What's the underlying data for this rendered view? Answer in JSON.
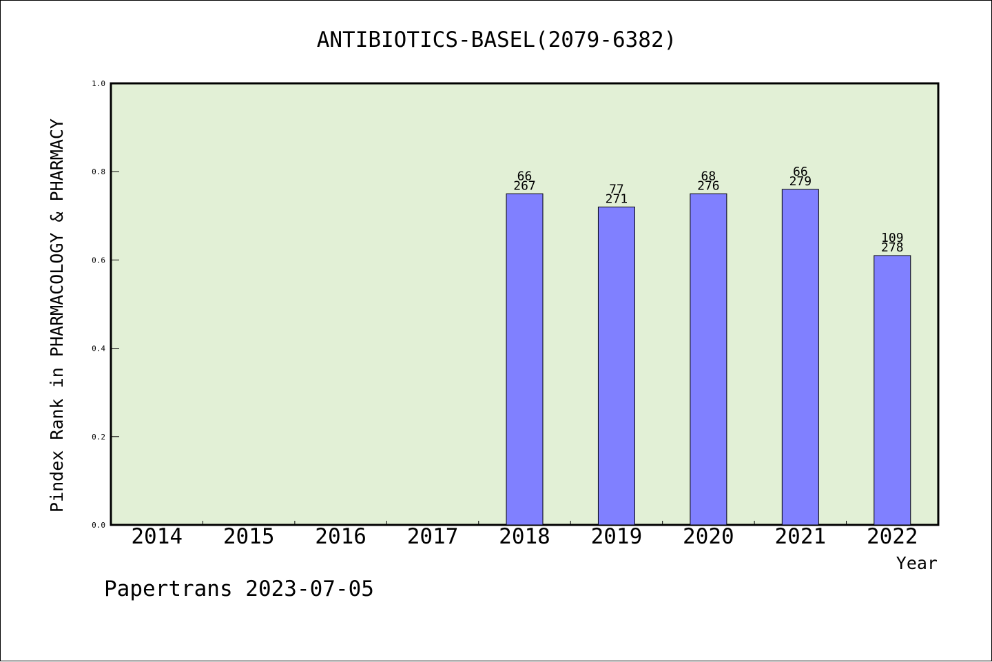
{
  "footer_text": "Papertrans 2023-07-05",
  "colors": {
    "plot_background": "#e2f0d6",
    "bar_fill": "#8080ff",
    "bar_stroke": "#000000",
    "axis": "#000000"
  },
  "chart_data": {
    "type": "bar",
    "title": "ANTIBIOTICS-BASEL(2079-6382)",
    "xlabel": "Year",
    "ylabel": "Pindex Rank in PHARMACOLOGY & PHARMACY",
    "ylim": [
      0,
      1.0
    ],
    "yticks": [
      "0.0",
      "0.2",
      "0.4",
      "0.6",
      "0.8",
      "1.0"
    ],
    "grid": false,
    "legend": "none",
    "categories": [
      "2014",
      "2015",
      "2016",
      "2017",
      "2018",
      "2019",
      "2020",
      "2021",
      "2022"
    ],
    "values": [
      null,
      null,
      null,
      null,
      0.75,
      0.72,
      0.75,
      0.76,
      0.61
    ],
    "rank_labels": [
      "",
      "",
      "",
      "",
      "66",
      "77",
      "68",
      "66",
      "109"
    ],
    "total_labels": [
      "",
      "",
      "",
      "",
      "267",
      "271",
      "276",
      "279",
      "278"
    ]
  }
}
